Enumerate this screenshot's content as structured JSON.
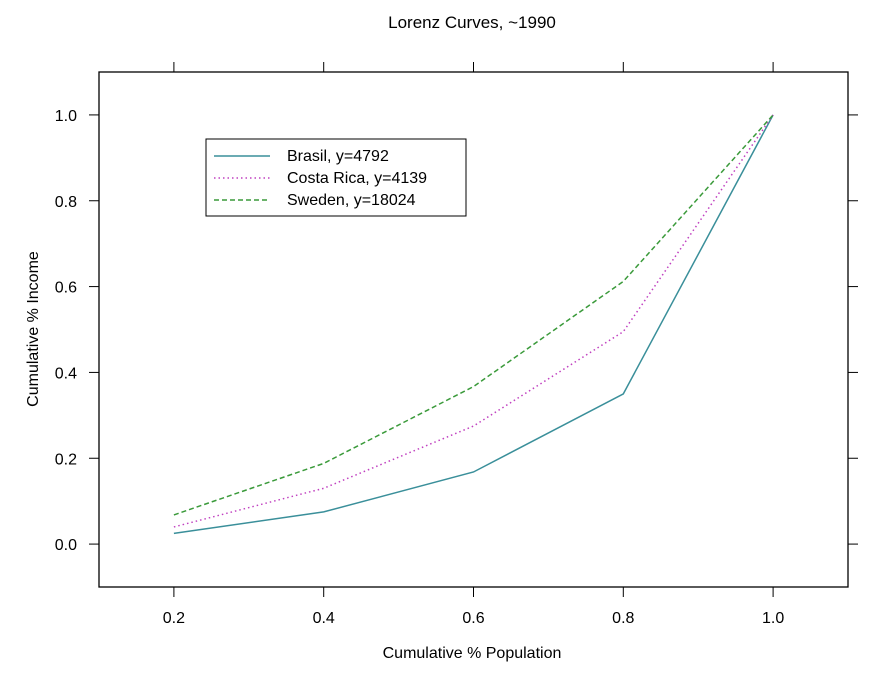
{
  "chart_data": {
    "type": "line",
    "title": "Lorenz Curves, ~1990",
    "xlabel": "Cumulative % Population",
    "ylabel": "Cumulative % Income",
    "x": [
      0.2,
      0.4,
      0.6,
      0.8,
      1.0
    ],
    "xlim": [
      0.1,
      1.1
    ],
    "ylim": [
      -0.1,
      1.1
    ],
    "x_ticks": [
      "0.2",
      "0.4",
      "0.6",
      "0.8",
      "1.0"
    ],
    "y_ticks": [
      "0.0",
      "0.2",
      "0.4",
      "0.6",
      "0.8",
      "1.0"
    ],
    "grid": false,
    "legend_position": "top-left",
    "series": [
      {
        "name": "Brasil, y=4792",
        "values": [
          0.025,
          0.075,
          0.168,
          0.35,
          1.0
        ],
        "color": "#3a8f9a",
        "line_style": "solid"
      },
      {
        "name": "Costa Rica, y=4139",
        "values": [
          0.04,
          0.13,
          0.275,
          0.495,
          1.0
        ],
        "color": "#c040c0",
        "line_style": "dotted"
      },
      {
        "name": "Sweden, y=18024",
        "values": [
          0.068,
          0.188,
          0.367,
          0.612,
          1.0
        ],
        "color": "#3a9a3a",
        "line_style": "dashed"
      }
    ]
  }
}
